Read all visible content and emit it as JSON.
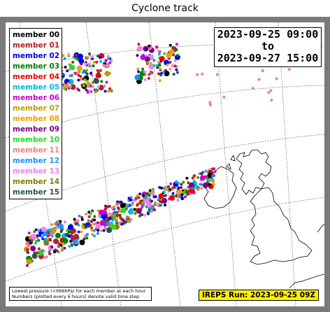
{
  "title": "Cyclone track",
  "date_range": {
    "start": "2023-09-25 09:00",
    "connector": "to",
    "end": "2023-09-27 15:00"
  },
  "legend": [
    {
      "label": "member 00",
      "color": "#000000"
    },
    {
      "label": "member 01",
      "color": "#b22222"
    },
    {
      "label": "member 02",
      "color": "#0000ee"
    },
    {
      "label": "member 03",
      "color": "#008000"
    },
    {
      "label": "member 04",
      "color": "#ee0000"
    },
    {
      "label": "member 05",
      "color": "#00bcd4"
    },
    {
      "label": "member 06",
      "color": "#cc00cc"
    },
    {
      "label": "member 07",
      "color": "#b8a000"
    },
    {
      "label": "member 08",
      "color": "#f0a000"
    },
    {
      "label": "member 09",
      "color": "#800080"
    },
    {
      "label": "member 10",
      "color": "#22dd22"
    },
    {
      "label": "member 11",
      "color": "#f08080"
    },
    {
      "label": "member 12",
      "color": "#1e90ff"
    },
    {
      "label": "member 13",
      "color": "#ee82ee"
    },
    {
      "label": "member 14",
      "color": "#808000"
    },
    {
      "label": "member 15",
      "color": "#2f4f4f"
    }
  ],
  "note": [
    "Lowest pressure (<996hPa) for each member at each hour",
    "Numbers (plotted every 6 hours) denote valid time step"
  ],
  "run_label": "IREPS Run: 2023-09-25 09Z"
}
